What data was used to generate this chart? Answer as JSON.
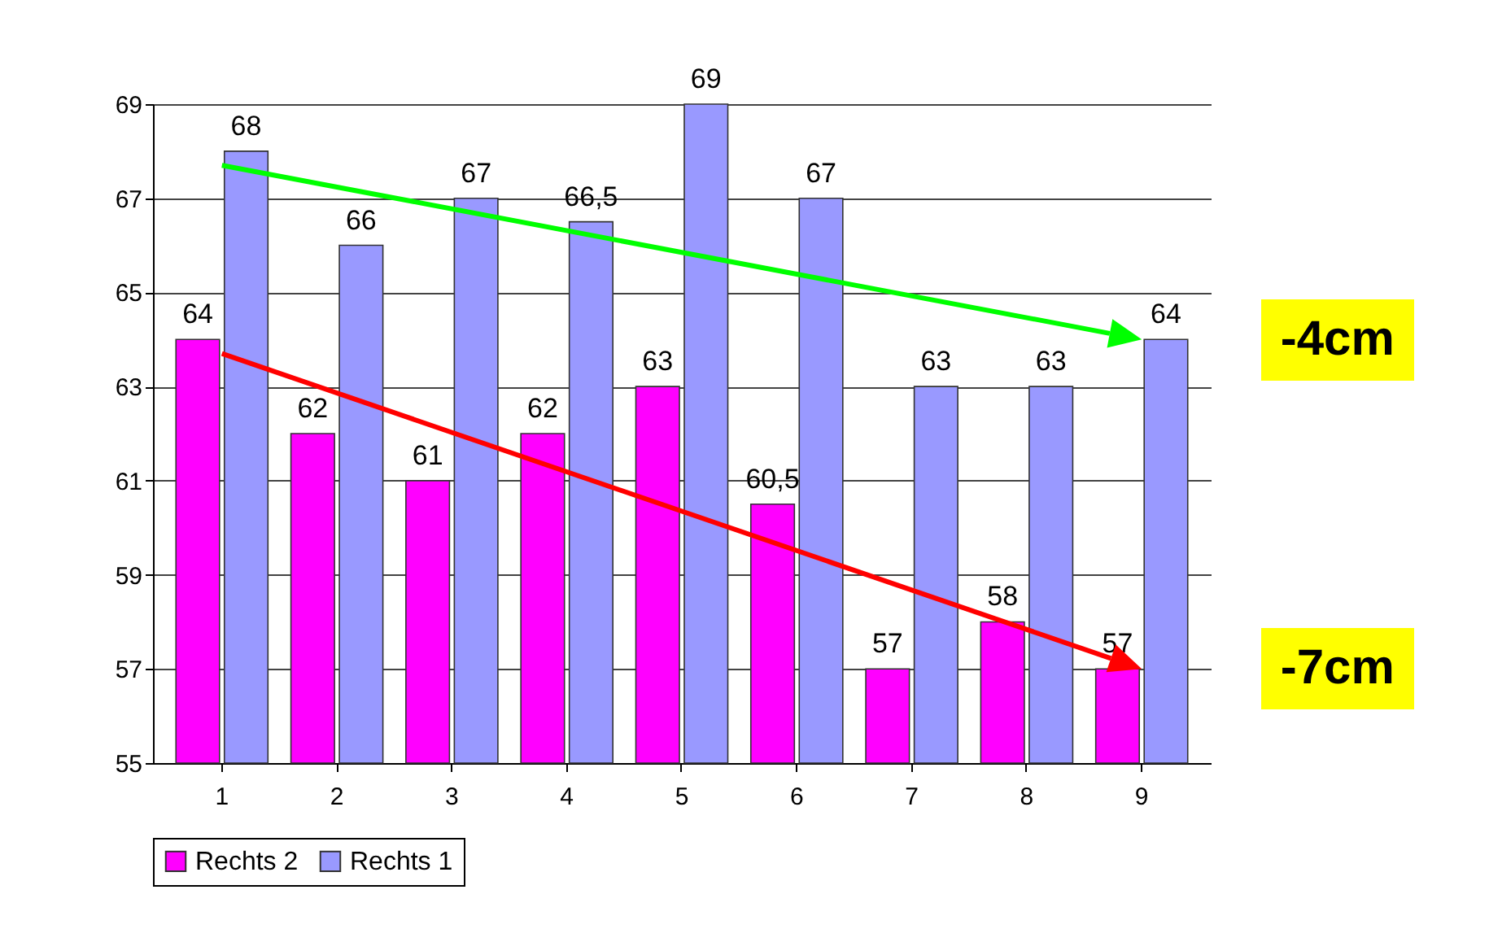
{
  "chart_data": {
    "type": "bar",
    "categories": [
      "1",
      "2",
      "3",
      "4",
      "5",
      "6",
      "7",
      "8",
      "9"
    ],
    "series": [
      {
        "name": "Rechts 2",
        "color": "#ff00ff",
        "values": [
          64,
          62,
          61,
          62,
          63,
          60.5,
          57,
          58,
          57
        ],
        "value_labels": [
          "64",
          "62",
          "61",
          "62",
          "63",
          "60,5",
          "57",
          "58",
          "57"
        ]
      },
      {
        "name": "Rechts 1",
        "color": "#9999ff",
        "values": [
          68,
          66,
          67,
          66.5,
          69,
          67,
          63,
          63,
          64
        ],
        "value_labels": [
          "68",
          "66",
          "67",
          "66,5",
          "69",
          "67",
          "63",
          "63",
          "64"
        ]
      }
    ],
    "ylim": [
      55,
      69
    ],
    "yticks": [
      55,
      57,
      59,
      61,
      63,
      65,
      67,
      69
    ],
    "grid": "y",
    "legend": "bottom",
    "annotations": [
      {
        "text": "-4cm",
        "x": "9",
        "y": 64
      },
      {
        "text": "-7cm",
        "x": "9",
        "y": 57
      }
    ]
  }
}
